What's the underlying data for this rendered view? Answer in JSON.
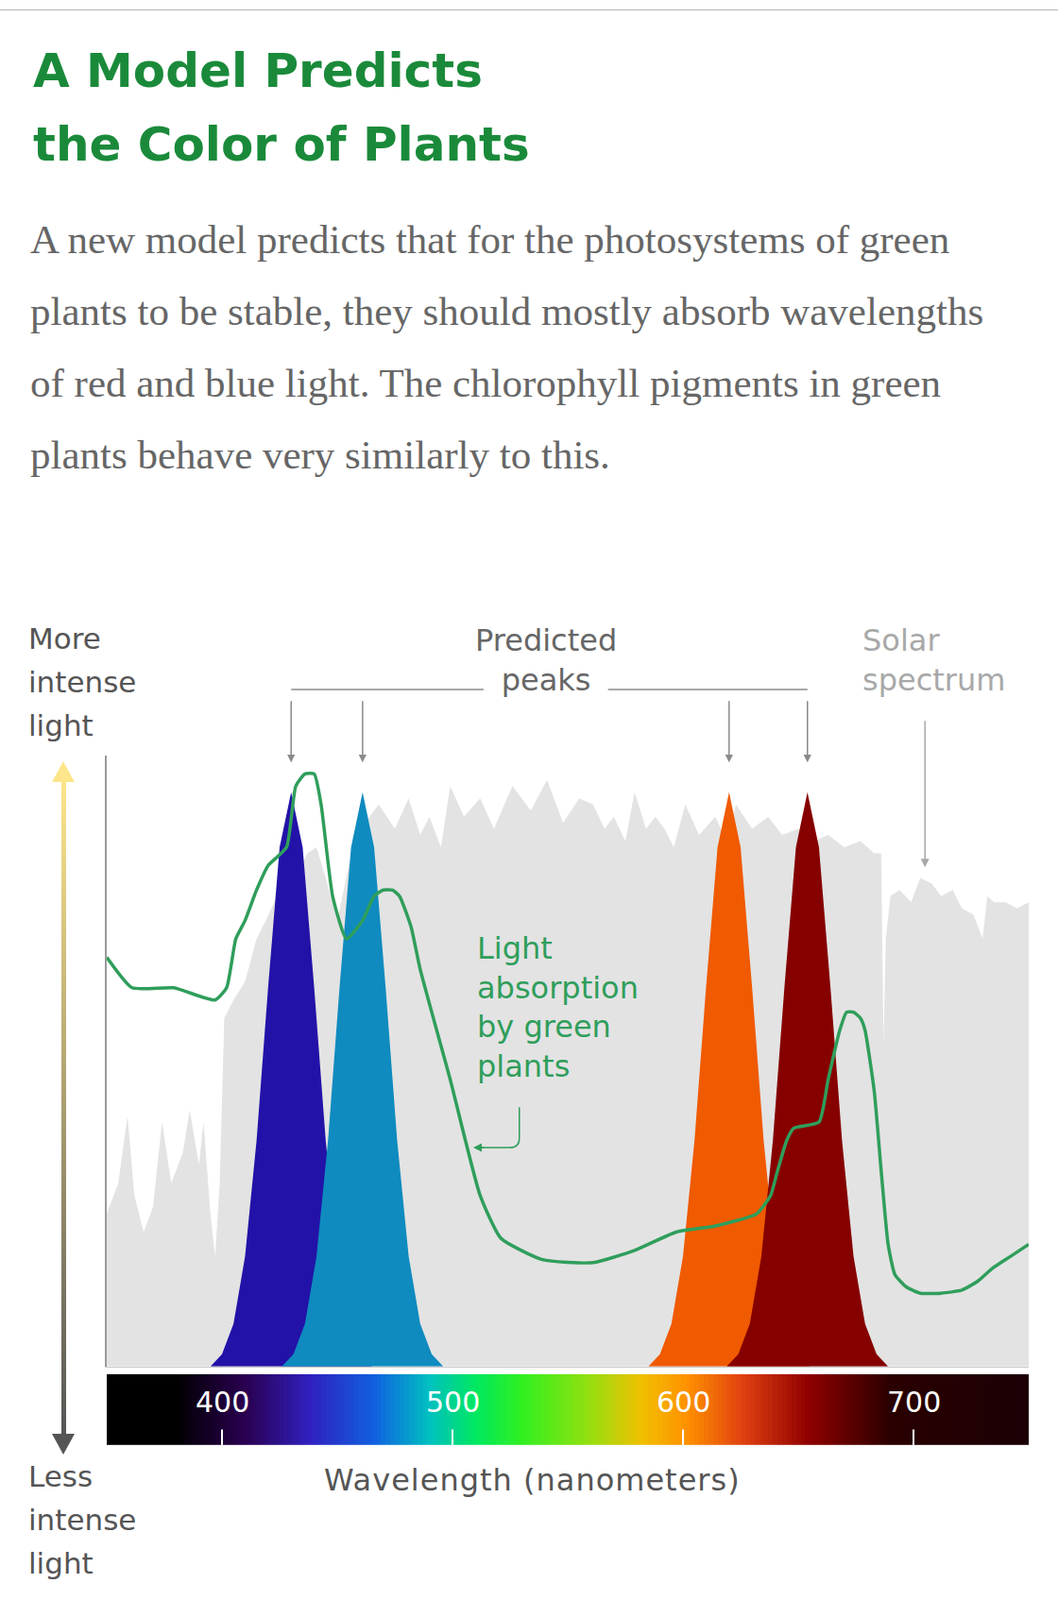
{
  "chart_data": {
    "type": "area",
    "title": "A Model Predicts\nthe Color of Plants",
    "subtitle": "A new model predicts that for the photosystems of green plants to be stable, they should mostly absorb wavelengths of red and blue light. The chlorophyll pigments in green plants behave very similarly to this.",
    "y_label_top": "More\nintense\nlight",
    "y_label_bottom": "Less\nintense\nlight",
    "x_label": "Wavelength (nanometers)",
    "xlim": [
      350,
      750
    ],
    "xticks": [
      400,
      500,
      600,
      700
    ],
    "ylim": [
      0,
      100
    ],
    "tick_labels": "x",
    "grid": false,
    "annotations": [
      {
        "text": "Predicted\npeaks"
      }
    ],
    "series": [
      {
        "name": "Solar\nspectrum",
        "type": "area",
        "color": "#e3e3e3",
        "x": [
          350,
          355,
          359,
          362,
          366,
          370,
          374,
          378,
          383,
          386,
          390,
          392,
          395,
          397,
          399,
          401,
          405,
          410,
          415,
          419,
          425,
          432,
          437,
          441,
          445,
          450,
          455,
          460,
          468,
          475,
          481,
          486,
          490,
          495,
          499,
          505,
          512,
          518,
          526,
          534,
          541,
          548,
          555,
          561,
          566,
          570,
          575,
          579,
          584,
          588,
          592,
          596,
          601,
          607,
          614,
          619,
          623,
          630,
          637,
          643,
          650,
          657,
          663,
          670,
          677,
          683,
          686,
          687,
          688,
          690,
          694,
          699,
          703,
          708,
          712,
          717,
          721,
          726,
          730,
          732,
          735,
          740,
          745,
          750
        ],
        "values": [
          25,
          30,
          41,
          28,
          22,
          26,
          40,
          30,
          35,
          42,
          33,
          40,
          25,
          18,
          30,
          57,
          60,
          63,
          70,
          73,
          78,
          80,
          84,
          85,
          80,
          73,
          82,
          88,
          92,
          88,
          93,
          87,
          90,
          85,
          95,
          90,
          93,
          88,
          95,
          91,
          96,
          89,
          93,
          92,
          88,
          90,
          86,
          94,
          88,
          90,
          88,
          85,
          92,
          87,
          90,
          86,
          92,
          88,
          90,
          87,
          88,
          86,
          87,
          85,
          86,
          84,
          84,
          53,
          70,
          77,
          78,
          76,
          80,
          79,
          77,
          78,
          75,
          74,
          70,
          77,
          76,
          76,
          75,
          76
        ]
      },
      {
        "type": "area",
        "color": "#2212a8",
        "x": [
          395,
          400,
          405,
          410,
          415,
          420,
          425,
          430,
          435,
          440,
          445,
          450,
          455,
          460,
          465
        ],
        "values": [
          0,
          2,
          7,
          18,
          37,
          62,
          85,
          94,
          85,
          62,
          37,
          18,
          7,
          2,
          0
        ]
      },
      {
        "type": "area",
        "color": "#0f8bbf",
        "x": [
          426,
          431,
          436,
          441,
          446,
          451,
          456,
          461,
          466,
          471,
          476,
          481,
          486,
          491,
          496
        ],
        "values": [
          0,
          2,
          7,
          18,
          37,
          62,
          85,
          94,
          85,
          62,
          37,
          18,
          7,
          2,
          0
        ]
      },
      {
        "type": "area",
        "color": "#f05a00",
        "x": [
          585,
          590,
          595,
          600,
          605,
          610,
          615,
          620,
          625,
          630,
          635,
          640,
          645,
          650,
          655
        ],
        "values": [
          0,
          2,
          7,
          18,
          37,
          62,
          85,
          94,
          85,
          62,
          37,
          18,
          7,
          2,
          0
        ]
      },
      {
        "type": "area",
        "color": "#860000",
        "x": [
          619,
          624,
          629,
          634,
          639,
          644,
          649,
          654,
          659,
          664,
          669,
          674,
          679,
          684,
          689
        ],
        "values": [
          0,
          2,
          7,
          18,
          37,
          62,
          85,
          94,
          85,
          62,
          37,
          18,
          7,
          2,
          0
        ]
      },
      {
        "name": "Light\nabsorption\nby green\nplants",
        "type": "line",
        "color": "#2f9e5b",
        "x": [
          350,
          361,
          379,
          397,
          402,
          406,
          410,
          415,
          420,
          428,
          432,
          436,
          440,
          443,
          448,
          454,
          461,
          466,
          470,
          474,
          477,
          482,
          486,
          499,
          512,
          521,
          539,
          561,
          579,
          597,
          614,
          632,
          638,
          641,
          645,
          648,
          659,
          663,
          668,
          671,
          674,
          677,
          679,
          683,
          686,
          689,
          692,
          697,
          703,
          712,
          721,
          728,
          734,
          742,
          750
        ],
        "values": [
          67,
          62,
          62,
          60,
          62,
          70,
          73,
          78,
          82,
          85,
          95,
          97,
          97,
          92,
          77,
          70,
          73,
          77,
          78,
          78,
          77,
          72,
          65,
          47,
          28,
          21,
          17.5,
          17,
          19,
          22,
          23,
          25,
          28,
          32,
          37,
          39,
          40,
          47,
          55,
          58,
          58,
          57,
          55,
          45,
          32,
          20,
          15,
          13,
          12,
          12,
          12.5,
          14,
          16,
          18,
          20
        ]
      }
    ]
  }
}
